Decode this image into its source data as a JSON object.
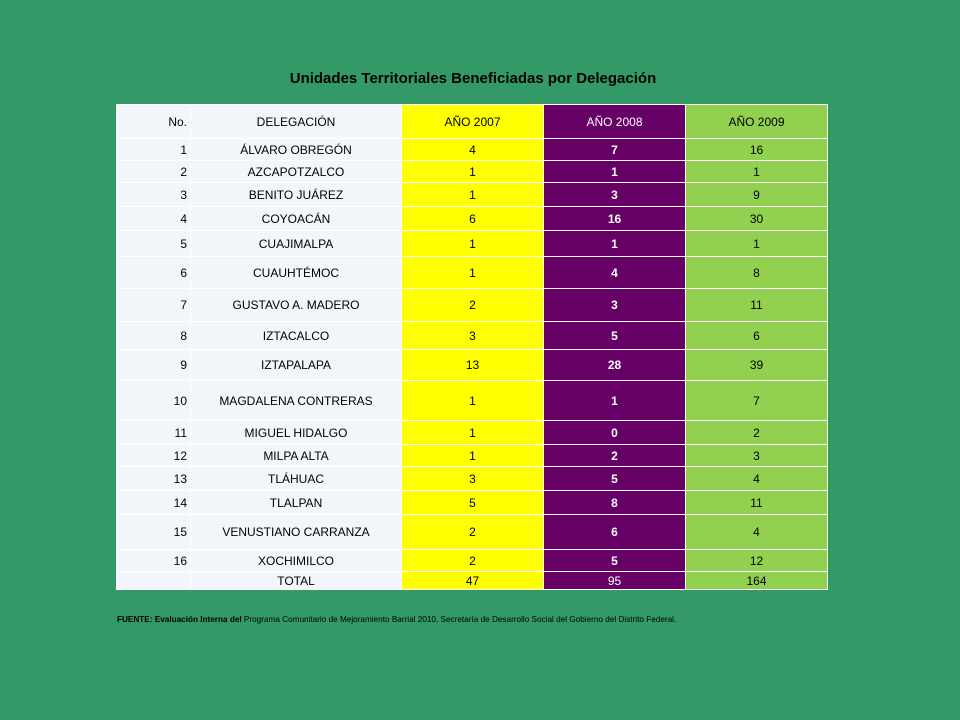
{
  "title": "Unidades Territoriales Beneficiadas  por Delegación",
  "table": {
    "headers": [
      "No.",
      "DELEGACIÓN",
      "AÑO 2007",
      "AÑO 2008",
      "AÑO 2009"
    ],
    "rows": [
      [
        "1",
        "ÁLVARO OBREGÓN",
        "4",
        "7",
        "16"
      ],
      [
        "2",
        "AZCAPOTZALCO",
        "1",
        "1",
        "1"
      ],
      [
        "3",
        "BENITO  JUÁREZ",
        "1",
        "3",
        "9"
      ],
      [
        "4",
        "COYOACÁN",
        "6",
        "16",
        "30"
      ],
      [
        "5",
        "CUAJIMALPA",
        "1",
        "1",
        "1"
      ],
      [
        "6",
        "CUAUHTÉMOC",
        "1",
        "4",
        "8"
      ],
      [
        "7",
        "GUSTAVO  A.  MADERO",
        "2",
        "3",
        "11"
      ],
      [
        "8",
        "IZTACALCO",
        "3",
        "5",
        "6"
      ],
      [
        "9",
        "IZTAPALAPA",
        "13",
        "28",
        "39"
      ],
      [
        "10",
        "MAGDALENA  CONTRERAS",
        "1",
        "1",
        "7"
      ],
      [
        "11",
        "MIGUEL  HIDALGO",
        "1",
        "0",
        "2"
      ],
      [
        "12",
        "MILPA  ALTA",
        "1",
        "2",
        "3"
      ],
      [
        "13",
        "TLÁHUAC",
        "3",
        "5",
        "4"
      ],
      [
        "14",
        "TLALPAN",
        "5",
        "8",
        "11"
      ],
      [
        "15",
        "VENUSTIANO  CARRANZA",
        "2",
        "6",
        "4"
      ],
      [
        "16",
        "XOCHIMILCO",
        "2",
        "5",
        "12"
      ]
    ],
    "total": [
      "",
      "TOTAL",
      "47",
      "95",
      "164"
    ]
  },
  "source": {
    "label": "FUENTE: Evaluación Interna del",
    "text": " Programa Comunitario de Mejoramiento Barrial 2010, Secretaría de Desarrollo Social del Gobierno del Distrito Federal."
  },
  "colors": {
    "background": "#339966",
    "year_2007": "#ffff00",
    "year_2008": "#660066",
    "year_2009": "#92d050",
    "name_column": "#f2f6fb"
  }
}
